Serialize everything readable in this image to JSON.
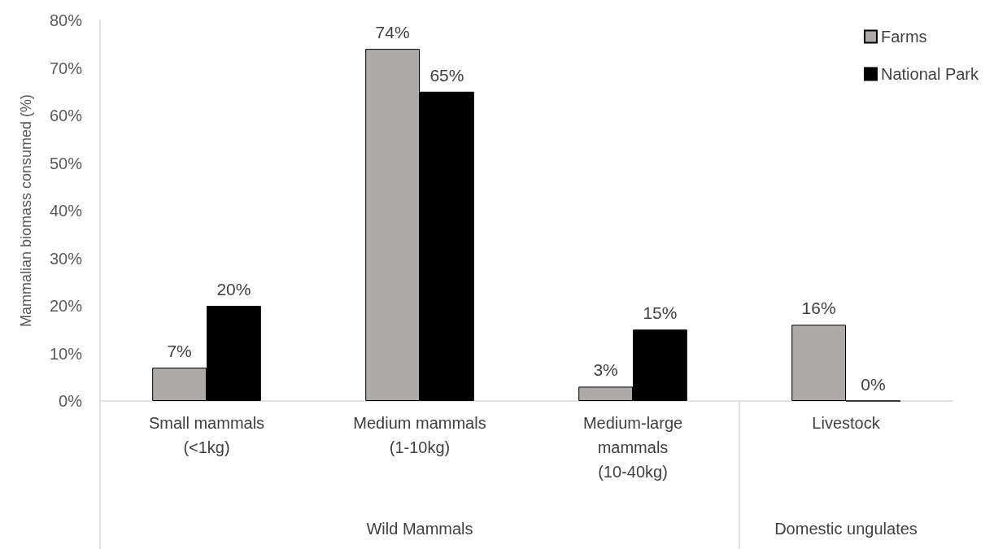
{
  "chart_data": {
    "type": "bar",
    "ylabel": "Mammalian biomass consumed (%)",
    "categories": [
      "Small mammals\n(<1kg)",
      "Medium mammals\n(1-10kg)",
      "Medium-large\nmammals\n(10-40kg)",
      "Livestock"
    ],
    "series": [
      {
        "name": "Farms",
        "color": "#aeaaaa",
        "values": [
          7,
          74,
          3,
          16
        ],
        "value_labels": [
          "7%",
          "74%",
          "3%",
          "16%"
        ]
      },
      {
        "name": "National Park",
        "color": "#000000",
        "values": [
          20,
          65,
          15,
          0
        ],
        "value_labels": [
          "20%",
          "65%",
          "15%",
          "0%"
        ]
      }
    ],
    "ylim": [
      0,
      80
    ],
    "yticks": [
      {
        "value": 0,
        "label": "0%"
      },
      {
        "value": 10,
        "label": "10%"
      },
      {
        "value": 20,
        "label": "20%"
      },
      {
        "value": 30,
        "label": "30%"
      },
      {
        "value": 40,
        "label": "40%"
      },
      {
        "value": 50,
        "label": "50%"
      },
      {
        "value": 60,
        "label": "60%"
      },
      {
        "value": 70,
        "label": "70%"
      },
      {
        "value": 80,
        "label": "80%"
      }
    ],
    "annotations": [
      "Wild Mammals",
      "Domestic ungulates"
    ],
    "grid": false,
    "legend": "top right"
  }
}
